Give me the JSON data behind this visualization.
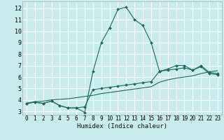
{
  "xlabel": "Humidex (Indice chaleur)",
  "xlim": [
    -0.5,
    23.5
  ],
  "ylim": [
    2.7,
    12.6
  ],
  "xticks": [
    0,
    1,
    2,
    3,
    4,
    5,
    6,
    7,
    8,
    9,
    10,
    11,
    12,
    13,
    14,
    15,
    16,
    17,
    18,
    19,
    20,
    21,
    22,
    23
  ],
  "yticks": [
    3,
    4,
    5,
    6,
    7,
    8,
    9,
    10,
    11,
    12
  ],
  "bg_color": "#c8ecec",
  "line_color": "#1a6b5a",
  "grid_color": "#ffffff",
  "line1_x": [
    0,
    1,
    2,
    3,
    4,
    5,
    6,
    7,
    8,
    9,
    10,
    11,
    12,
    13,
    14,
    15,
    16,
    17,
    18,
    19,
    20,
    21,
    22,
    23
  ],
  "line1_y": [
    3.7,
    3.8,
    3.7,
    3.9,
    3.5,
    3.3,
    3.3,
    2.9,
    6.5,
    9.0,
    10.3,
    11.9,
    12.1,
    11.0,
    10.5,
    9.0,
    6.5,
    6.7,
    7.0,
    7.0,
    6.6,
    7.0,
    6.4,
    6.3
  ],
  "line2_x": [
    0,
    1,
    2,
    3,
    4,
    5,
    6,
    7,
    8,
    9,
    10,
    11,
    12,
    13,
    14,
    15,
    16,
    17,
    18,
    19,
    20,
    21,
    22,
    23
  ],
  "line2_y": [
    3.7,
    3.8,
    3.7,
    3.9,
    3.5,
    3.3,
    3.3,
    3.4,
    4.9,
    5.0,
    5.1,
    5.2,
    5.3,
    5.4,
    5.5,
    5.6,
    6.5,
    6.6,
    6.7,
    6.8,
    6.6,
    6.9,
    6.3,
    6.2
  ],
  "line3_x": [
    0,
    1,
    2,
    3,
    4,
    5,
    6,
    7,
    8,
    9,
    10,
    11,
    12,
    13,
    14,
    15,
    16,
    17,
    18,
    19,
    20,
    21,
    22,
    23
  ],
  "line3_y": [
    3.7,
    3.85,
    3.9,
    4.0,
    4.05,
    4.1,
    4.2,
    4.3,
    4.4,
    4.55,
    4.65,
    4.75,
    4.85,
    4.95,
    5.05,
    5.15,
    5.55,
    5.75,
    5.9,
    6.0,
    6.1,
    6.3,
    6.45,
    6.55
  ]
}
